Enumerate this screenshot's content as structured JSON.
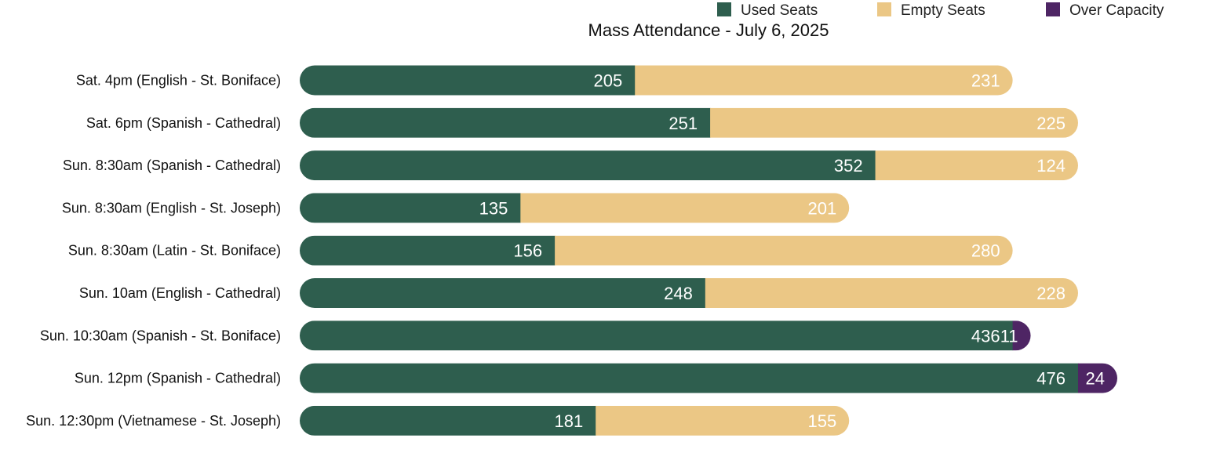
{
  "chart_data": {
    "type": "bar",
    "orientation": "horizontal",
    "stacked": true,
    "title": "Mass Attendance - July 6, 2025",
    "legend_position": "top-right",
    "grid": false,
    "categories": [
      "Sat. 4pm (English - St. Boniface)",
      "Sat. 6pm (Spanish - Cathedral)",
      "Sun. 8:30am (Spanish - Cathedral)",
      "Sun. 8:30am (English - St. Joseph)",
      "Sun. 8:30am (Latin - St. Boniface)",
      "Sun. 10am (English - Cathedral)",
      "Sun. 10:30am (Spanish - St. Boniface)",
      "Sun. 12pm (Spanish - Cathedral)",
      "Sun. 12:30pm (Vietnamese - St. Joseph)"
    ],
    "series": [
      {
        "name": "Used Seats",
        "color": "#2e5e4e",
        "values": [
          205,
          251,
          352,
          135,
          156,
          248,
          436,
          476,
          181
        ]
      },
      {
        "name": "Empty Seats",
        "color": "#ebc785",
        "values": [
          231,
          225,
          124,
          201,
          280,
          228,
          0,
          0,
          155
        ]
      },
      {
        "name": "Over Capacity",
        "color": "#4e2564",
        "values": [
          0,
          0,
          0,
          0,
          0,
          0,
          11,
          24,
          0
        ]
      }
    ],
    "xlim": [
      0,
      500
    ]
  }
}
